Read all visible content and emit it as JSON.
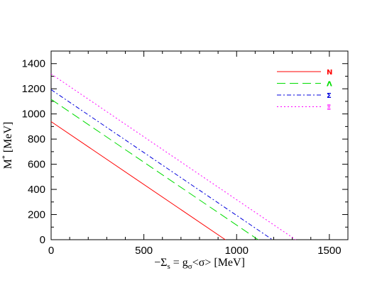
{
  "chart_data": {
    "type": "line",
    "title": "",
    "xlabel": "−Σs = gσ<σ> [MeV]",
    "xlabel_parts": {
      "lhs": "−Σ",
      "lhs_sub": "s",
      "eq": " = g",
      "g_sub": "σ",
      "rhs": "<σ> [MeV]"
    },
    "ylabel": "M* [MeV]",
    "ylabel_parts": {
      "base": "M",
      "sup": "*",
      "unit": " [MeV]"
    },
    "xlim": [
      0,
      1600
    ],
    "ylim": [
      0,
      1500
    ],
    "x_ticks": [
      0,
      500,
      1000,
      1500
    ],
    "y_ticks": [
      0,
      200,
      400,
      600,
      800,
      1000,
      1200,
      1400
    ],
    "legend_position": "top-right",
    "grid": false,
    "series": [
      {
        "name": "N",
        "color": "#ff0000",
        "dash": "none",
        "x": [
          0,
          939
        ],
        "y": [
          939,
          0
        ]
      },
      {
        "name": "Λ",
        "color": "#00dd00",
        "dash": "12,6",
        "x": [
          0,
          1116
        ],
        "y": [
          1116,
          0
        ]
      },
      {
        "name": "Σ",
        "color": "#0000dd",
        "dash": "6,3,2,3",
        "x": [
          0,
          1193
        ],
        "y": [
          1193,
          0
        ]
      },
      {
        "name": "Ξ",
        "color": "#ff00ff",
        "dash": "2,3",
        "x": [
          0,
          1318
        ],
        "y": [
          1318,
          0
        ]
      }
    ]
  }
}
